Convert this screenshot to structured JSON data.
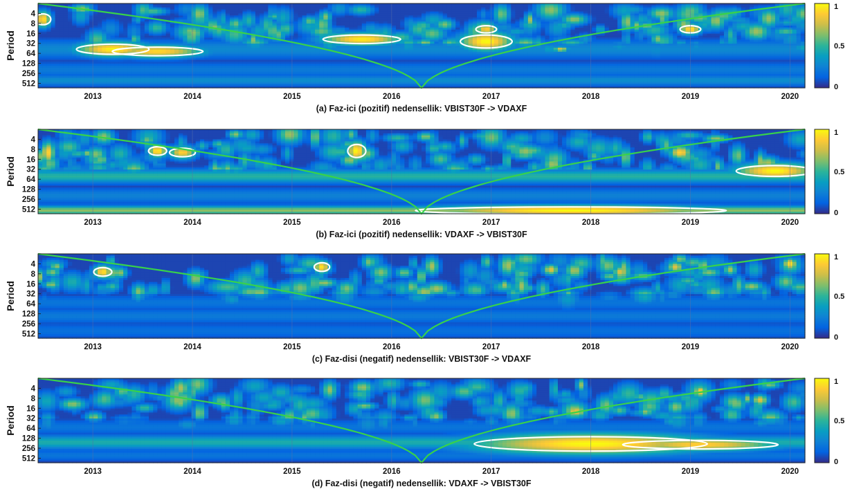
{
  "chart_data": [
    {
      "type": "heatmap",
      "title": "(a)  Faz-ici (pozitif) nedensellik: VBIST30F -> VDAXF",
      "ylabel": "Period",
      "xlabel": "",
      "x_ticks": [
        "2013",
        "2014",
        "2015",
        "2016",
        "2017",
        "2018",
        "2019",
        "2020"
      ],
      "y_ticks": [
        "4",
        "8",
        "16",
        "32",
        "64",
        "128",
        "256",
        "512"
      ],
      "xlim": [
        2012.45,
        2020.15
      ],
      "y_scale": "log2",
      "ylim": [
        2,
        700
      ],
      "colorbar": {
        "min": 0,
        "max": 1,
        "ticks": [
          "1",
          "0.5",
          "0"
        ]
      },
      "seed": 11,
      "bands": [
        {
          "period": 48,
          "width": 0.25,
          "v": 0.28
        },
        {
          "period": 200,
          "width": 0.2,
          "v": 0.22
        },
        {
          "period": 420,
          "width": 0.15,
          "v": 0.3
        }
      ],
      "hotspots": [
        {
          "year": 2013.2,
          "period": 48,
          "value": 0.98,
          "sx": 0.28,
          "sy": 0.14,
          "contour": true
        },
        {
          "year": 2013.65,
          "period": 56,
          "value": 0.92,
          "sx": 0.35,
          "sy": 0.12,
          "contour": true
        },
        {
          "year": 2015.7,
          "period": 24,
          "value": 0.97,
          "sx": 0.3,
          "sy": 0.12,
          "contour": true
        },
        {
          "year": 2016.95,
          "period": 28,
          "value": 1.0,
          "sx": 0.2,
          "sy": 0.18,
          "contour": true
        },
        {
          "year": 2016.95,
          "period": 12,
          "value": 0.9,
          "sx": 0.08,
          "sy": 0.1,
          "contour": true
        },
        {
          "year": 2019.0,
          "period": 12,
          "value": 0.95,
          "sx": 0.08,
          "sy": 0.1,
          "contour": true
        },
        {
          "year": 2017.7,
          "period": 48,
          "value": 0.78,
          "sx": 0.06,
          "sy": 0.05
        },
        {
          "year": 2012.5,
          "period": 6,
          "value": 0.95,
          "sx": 0.06,
          "sy": 0.15,
          "contour": true
        },
        {
          "year": 2015.3,
          "period": 14,
          "value": 0.6,
          "sx": 0.1,
          "sy": 0.1
        }
      ]
    },
    {
      "type": "heatmap",
      "title": "(b) Faz-ici (pozitif) nedensellik: VDAXF -> VBIST30F",
      "ylabel": "Period",
      "xlabel": "",
      "x_ticks": [
        "2013",
        "2014",
        "2015",
        "2016",
        "2017",
        "2018",
        "2019",
        "2020"
      ],
      "y_ticks": [
        "4",
        "8",
        "16",
        "32",
        "64",
        "128",
        "256",
        "512"
      ],
      "xlim": [
        2012.45,
        2020.15
      ],
      "y_scale": "log2",
      "ylim": [
        2,
        700
      ],
      "colorbar": {
        "min": 0,
        "max": 1,
        "ticks": [
          "1",
          "0.5",
          "0"
        ]
      },
      "seed": 23,
      "bands": [
        {
          "period": 52,
          "width": 0.18,
          "v": 0.48
        },
        {
          "period": 200,
          "width": 0.2,
          "v": 0.25
        },
        {
          "period": 560,
          "width": 0.12,
          "v": 0.65
        }
      ],
      "hotspots": [
        {
          "year": 2017.8,
          "period": 560,
          "value": 1.0,
          "sx": 1.2,
          "sy": 0.1,
          "contour": true
        },
        {
          "year": 2019.85,
          "period": 36,
          "value": 1.0,
          "sx": 0.3,
          "sy": 0.15,
          "contour": true
        },
        {
          "year": 2013.65,
          "period": 9,
          "value": 0.98,
          "sx": 0.07,
          "sy": 0.12,
          "contour": true
        },
        {
          "year": 2013.9,
          "period": 10,
          "value": 0.9,
          "sx": 0.1,
          "sy": 0.12,
          "contour": true
        },
        {
          "year": 2015.65,
          "period": 9,
          "value": 1.0,
          "sx": 0.07,
          "sy": 0.18,
          "contour": true
        },
        {
          "year": 2018.9,
          "period": 10,
          "value": 0.9,
          "sx": 0.08,
          "sy": 0.12
        },
        {
          "year": 2012.55,
          "period": 10,
          "value": 0.9,
          "sx": 0.05,
          "sy": 0.2
        }
      ]
    },
    {
      "type": "heatmap",
      "title": "(c)  Faz-disi (negatif) nedensellik: VBIST30F -> VDAXF",
      "ylabel": "Period",
      "xlabel": "",
      "x_ticks": [
        "2013",
        "2014",
        "2015",
        "2016",
        "2017",
        "2018",
        "2019",
        "2020"
      ],
      "y_ticks": [
        "4",
        "8",
        "16",
        "32",
        "64",
        "128",
        "256",
        "512"
      ],
      "xlim": [
        2012.45,
        2020.15
      ],
      "y_scale": "log2",
      "ylim": [
        2,
        700
      ],
      "colorbar": {
        "min": 0,
        "max": 1,
        "ticks": [
          "1",
          "0.5",
          "0"
        ]
      },
      "seed": 37,
      "bands": [
        {
          "period": 60,
          "width": 0.2,
          "v": 0.2
        },
        {
          "period": 150,
          "width": 0.2,
          "v": 0.22
        },
        {
          "period": 420,
          "width": 0.2,
          "v": 0.18
        }
      ],
      "hotspots": [
        {
          "year": 2013.1,
          "period": 7,
          "value": 0.95,
          "sx": 0.07,
          "sy": 0.12,
          "contour": true
        },
        {
          "year": 2015.3,
          "period": 5,
          "value": 0.95,
          "sx": 0.06,
          "sy": 0.12,
          "contour": true
        },
        {
          "year": 2014.35,
          "period": 20,
          "value": 0.55,
          "sx": 0.15,
          "sy": 0.12
        },
        {
          "year": 2017.6,
          "period": 6,
          "value": 0.8,
          "sx": 0.06,
          "sy": 0.1
        },
        {
          "year": 2018.3,
          "period": 7,
          "value": 0.8,
          "sx": 0.06,
          "sy": 0.1
        },
        {
          "year": 2018.85,
          "period": 5,
          "value": 0.8,
          "sx": 0.06,
          "sy": 0.1
        },
        {
          "year": 2019.4,
          "period": 6,
          "value": 0.7,
          "sx": 0.05,
          "sy": 0.1
        },
        {
          "year": 2020.0,
          "period": 4,
          "value": 0.95,
          "sx": 0.05,
          "sy": 0.1
        }
      ]
    },
    {
      "type": "heatmap",
      "title": "(d) Faz-disi (negatif) nedensellik: VDAXF -> VBIST30F",
      "ylabel": "Period",
      "xlabel": "",
      "x_ticks": [
        "2013",
        "2014",
        "2015",
        "2016",
        "2017",
        "2018",
        "2019",
        "2020"
      ],
      "y_ticks": [
        "4",
        "8",
        "16",
        "32",
        "64",
        "128",
        "256",
        "512"
      ],
      "xlim": [
        2012.45,
        2020.15
      ],
      "y_scale": "log2",
      "ylim": [
        2,
        700
      ],
      "colorbar": {
        "min": 0,
        "max": 1,
        "ticks": [
          "1",
          "0.5",
          "0"
        ]
      },
      "seed": 51,
      "bands": [
        {
          "period": 170,
          "width": 0.18,
          "v": 0.45
        },
        {
          "period": 60,
          "width": 0.2,
          "v": 0.2
        },
        {
          "period": 420,
          "width": 0.15,
          "v": 0.2
        }
      ],
      "hotspots": [
        {
          "year": 2018.0,
          "period": 190,
          "value": 1.0,
          "sx": 0.9,
          "sy": 0.2,
          "contour": true
        },
        {
          "year": 2019.1,
          "period": 200,
          "value": 0.9,
          "sx": 0.6,
          "sy": 0.12,
          "contour": true
        },
        {
          "year": 2017.85,
          "period": 20,
          "value": 0.85,
          "sx": 0.08,
          "sy": 0.1
        },
        {
          "year": 2019.1,
          "period": 5,
          "value": 0.9,
          "sx": 0.05,
          "sy": 0.1
        },
        {
          "year": 2019.7,
          "period": 9,
          "value": 0.8,
          "sx": 0.06,
          "sy": 0.1
        },
        {
          "year": 2012.8,
          "period": 12,
          "value": 0.65,
          "sx": 0.1,
          "sy": 0.1
        },
        {
          "year": 2013.3,
          "period": 5,
          "value": 0.6,
          "sx": 0.06,
          "sy": 0.1
        }
      ]
    }
  ]
}
